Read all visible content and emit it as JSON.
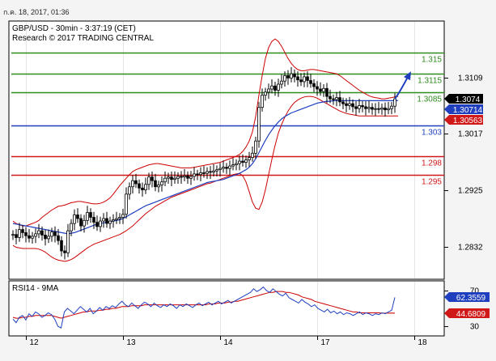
{
  "header": {
    "datetime": "ก.ค. 18, 2017, 01:36",
    "title": "GBP/USD - 30min - 3:37:19 (CET)",
    "source": "Research © 2017 TRADING CENTRAL"
  },
  "colors": {
    "bg": "#ffffff",
    "frame": "#000000",
    "resistance": "#2e8b1e",
    "pivot": "#1f3fbf",
    "support": "#d01818",
    "candles": "#000000",
    "bollinger": "#cc0000",
    "ma": "#1f3fbf",
    "rsi": "#1f3fbf",
    "rsi_ma": "#cc0000",
    "arrow": "#1f3fbf",
    "price_tag_bg": "#000000",
    "ma_tag_bg": "#1f3fbf",
    "bb_tag_bg": "#d01818"
  },
  "chart_data": [
    {
      "type": "line",
      "panel": "price",
      "ylim": [
        1.278,
        1.32
      ],
      "y_ticks": [
        {
          "label": "1.3109",
          "value": 1.3109
        },
        {
          "label": "1.3017",
          "value": 1.3017
        },
        {
          "label": "1.2925",
          "value": 1.2925
        },
        {
          "label": "1.2832",
          "value": 1.2832
        }
      ],
      "x_ticks": [
        {
          "label": "12",
          "index": 4
        },
        {
          "label": "13",
          "index": 34
        },
        {
          "label": "14",
          "index": 64
        },
        {
          "label": "17",
          "index": 94
        },
        {
          "label": "18",
          "index": 124
        }
      ],
      "levels": [
        {
          "label": "1.315",
          "value": 1.315,
          "role": "resistance"
        },
        {
          "label": "1.3115",
          "value": 1.3115,
          "role": "resistance"
        },
        {
          "label": "1.3085",
          "value": 1.3085,
          "role": "resistance"
        },
        {
          "label": "1.303",
          "value": 1.303,
          "role": "pivot"
        },
        {
          "label": "1.298",
          "value": 1.298,
          "role": "support"
        },
        {
          "label": "1.295",
          "value": 1.295,
          "role": "support"
        }
      ],
      "tags": [
        {
          "label": "1.3074",
          "value": 1.3074,
          "role": "price"
        },
        {
          "label": "1.30714",
          "value": 1.30714,
          "role": "ma"
        },
        {
          "label": "1.30563",
          "value": 1.30563,
          "role": "bb"
        }
      ],
      "close": [
        1.2852,
        1.2847,
        1.286,
        1.2855,
        1.285,
        1.2846,
        1.2849,
        1.2853,
        1.2858,
        1.2851,
        1.2845,
        1.2849,
        1.2856,
        1.285,
        1.2842,
        1.2825,
        1.2822,
        1.2858,
        1.287,
        1.2884,
        1.2878,
        1.2866,
        1.2875,
        1.2888,
        1.288,
        1.2872,
        1.2865,
        1.2874,
        1.2878,
        1.287,
        1.2874,
        1.2876,
        1.2878,
        1.288,
        1.2885,
        1.2918,
        1.293,
        1.294,
        1.2935,
        1.2928,
        1.2925,
        1.2934,
        1.2946,
        1.294,
        1.293,
        1.2933,
        1.2938,
        1.2944,
        1.2946,
        1.2942,
        1.2944,
        1.2947,
        1.2946,
        1.2948,
        1.2944,
        1.2947,
        1.2951,
        1.295,
        1.2953,
        1.2952,
        1.2955,
        1.2954,
        1.2956,
        1.2958,
        1.296,
        1.2962,
        1.296,
        1.2964,
        1.2966,
        1.2968,
        1.2972,
        1.297,
        1.2974,
        1.2978,
        1.2985,
        1.3005,
        1.306,
        1.308,
        1.3085,
        1.309,
        1.3095,
        1.3088,
        1.3098,
        1.3103,
        1.3112,
        1.3108,
        1.3115,
        1.311,
        1.3105,
        1.3102,
        1.311,
        1.3104,
        1.3099,
        1.3094,
        1.309,
        1.3086,
        1.3091,
        1.3078,
        1.3074,
        1.3073,
        1.3076,
        1.3069,
        1.3066,
        1.3063,
        1.3066,
        1.3061,
        1.3058,
        1.3063,
        1.3061,
        1.3058,
        1.306,
        1.3057,
        1.3058,
        1.3057,
        1.3059,
        1.3056,
        1.3058,
        1.3062,
        1.3074
      ],
      "bollinger_upper": [
        1.2874,
        1.287,
        1.2868,
        1.2866,
        1.2866,
        1.2868,
        1.287,
        1.2872,
        1.2875,
        1.288,
        1.2884,
        1.2888,
        1.2892,
        1.2895,
        1.2898,
        1.2899,
        1.29,
        1.2902,
        1.2904,
        1.2905,
        1.2906,
        1.2906,
        1.2905,
        1.2904,
        1.2903,
        1.2902,
        1.2902,
        1.2903,
        1.2905,
        1.2908,
        1.2912,
        1.2918,
        1.2925,
        1.2932,
        1.2938,
        1.2944,
        1.295,
        1.2955,
        1.2958,
        1.296,
        1.2962,
        1.2964,
        1.2966,
        1.2967,
        1.2968,
        1.2968,
        1.2967,
        1.2966,
        1.2965,
        1.2964,
        1.2963,
        1.2962,
        1.2961,
        1.2961,
        1.2961,
        1.2961,
        1.2962,
        1.2963,
        1.2964,
        1.2965,
        1.2966,
        1.2967,
        1.2968,
        1.2969,
        1.297,
        1.2972,
        1.2974,
        1.2976,
        1.2978,
        1.298,
        1.2983,
        1.2988,
        1.2995,
        1.3005,
        1.302,
        1.3045,
        1.308,
        1.3112,
        1.314,
        1.3158,
        1.3168,
        1.3172,
        1.3168,
        1.316,
        1.315,
        1.314,
        1.3132,
        1.3126,
        1.3122,
        1.312,
        1.312,
        1.3121,
        1.3122,
        1.3122,
        1.3121,
        1.312,
        1.3119,
        1.3118,
        1.3117,
        1.3116,
        1.3115,
        1.3112,
        1.3108,
        1.3104,
        1.31,
        1.3096,
        1.3092,
        1.3088,
        1.3085,
        1.3082,
        1.3079,
        1.3077,
        1.3076,
        1.3075,
        1.3074,
        1.3074,
        1.3075,
        1.3076,
        1.3077,
        1.3078
      ],
      "bollinger_lower": [
        1.2834,
        1.2831,
        1.283,
        1.2829,
        1.2829,
        1.2829,
        1.2829,
        1.2829,
        1.2828,
        1.2826,
        1.2823,
        1.2819,
        1.2815,
        1.2812,
        1.281,
        1.2809,
        1.2808,
        1.2809,
        1.2811,
        1.2814,
        1.2818,
        1.2822,
        1.2826,
        1.283,
        1.2833,
        1.2836,
        1.2838,
        1.284,
        1.2842,
        1.2844,
        1.2846,
        1.2848,
        1.285,
        1.2852,
        1.2855,
        1.2858,
        1.2862,
        1.2866,
        1.2871,
        1.2876,
        1.2881,
        1.2886,
        1.289,
        1.2894,
        1.2898,
        1.2901,
        1.2904,
        1.2907,
        1.291,
        1.2913,
        1.2915,
        1.2917,
        1.2919,
        1.2921,
        1.2923,
        1.2925,
        1.2927,
        1.2929,
        1.2931,
        1.2933,
        1.2935,
        1.2936,
        1.2938,
        1.294,
        1.2942,
        1.2944,
        1.2946,
        1.2948,
        1.295,
        1.2951,
        1.2952,
        1.2948,
        1.2938,
        1.2922,
        1.2905,
        1.2895,
        1.2893,
        1.2905,
        1.2925,
        1.295,
        1.2975,
        1.2998,
        1.3018,
        1.3032,
        1.3044,
        1.3054,
        1.3062,
        1.3068,
        1.3072,
        1.3075,
        1.3077,
        1.3078,
        1.3078,
        1.3077,
        1.3075,
        1.3072,
        1.3069,
        1.3066,
        1.3063,
        1.306,
        1.3057,
        1.3054,
        1.3052,
        1.305,
        1.3049,
        1.3048,
        1.3047,
        1.3046,
        1.3046,
        1.3046,
        1.3046,
        1.3046,
        1.3046,
        1.3046,
        1.3046,
        1.3046,
        1.3046,
        1.3046,
        1.3046,
        1.3046
      ],
      "moving_average": [
        1.287,
        1.2869,
        1.2868,
        1.2867,
        1.2866,
        1.2865,
        1.2864,
        1.2863,
        1.2862,
        1.2861,
        1.286,
        1.2859,
        1.2858,
        1.2857,
        1.2856,
        1.2855,
        1.2854,
        1.2853,
        1.2854,
        1.2855,
        1.2857,
        1.2859,
        1.2861,
        1.2863,
        1.2865,
        1.2867,
        1.2869,
        1.287,
        1.2871,
        1.2872,
        1.2873,
        1.2874,
        1.2875,
        1.2876,
        1.2878,
        1.2881,
        1.2884,
        1.2887,
        1.289,
        1.2893,
        1.2896,
        1.2899,
        1.2901,
        1.2903,
        1.2905,
        1.2907,
        1.2909,
        1.2911,
        1.2913,
        1.2915,
        1.2917,
        1.2919,
        1.2921,
        1.2923,
        1.2925,
        1.2927,
        1.2929,
        1.2931,
        1.2933,
        1.2935,
        1.2937,
        1.2938,
        1.2939,
        1.294,
        1.2941,
        1.2942,
        1.2944,
        1.2946,
        1.2948,
        1.295,
        1.2952,
        1.2955,
        1.2958,
        1.2962,
        1.2968,
        1.2976,
        1.2986,
        1.2996,
        1.3006,
        1.3015,
        1.3023,
        1.303,
        1.3036,
        1.3041,
        1.3045,
        1.3048,
        1.3051,
        1.3053,
        1.3055,
        1.3057,
        1.3059,
        1.3061,
        1.3063,
        1.3065,
        1.3067,
        1.3068,
        1.3069,
        1.307,
        1.307,
        1.3071,
        1.3071,
        1.3071,
        1.3071,
        1.3071,
        1.3071,
        1.3071,
        1.3071,
        1.3071,
        1.3071,
        1.3071,
        1.3071,
        1.3071,
        1.3071,
        1.3071,
        1.3071,
        1.3071,
        1.3071,
        1.3071,
        1.3071,
        1.30714
      ]
    },
    {
      "type": "line",
      "panel": "rsi",
      "title": "RSI14 - 9MA",
      "ylim": [
        20,
        80
      ],
      "y_ticks": [
        {
          "label": "70",
          "value": 70
        },
        {
          "label": "30",
          "value": 30
        }
      ],
      "tags": [
        {
          "label": "62.3559",
          "value": 62.3559,
          "role": "rsi"
        },
        {
          "label": "44.6809",
          "value": 44.6809,
          "role": "rsi_ma"
        }
      ],
      "rsi": [
        38,
        34,
        40,
        42,
        37,
        44,
        41,
        46,
        44,
        40,
        42,
        45,
        43,
        38,
        30,
        28,
        46,
        50,
        47,
        44,
        48,
        52,
        49,
        46,
        50,
        44,
        47,
        51,
        48,
        52,
        50,
        53,
        51,
        55,
        58,
        54,
        52,
        56,
        53,
        50,
        54,
        57,
        55,
        52,
        56,
        53,
        51,
        54,
        52,
        55,
        53,
        50,
        54,
        52,
        55,
        53,
        51,
        54,
        56,
        53,
        55,
        57,
        54,
        56,
        58,
        55,
        57,
        59,
        56,
        58,
        60,
        62,
        64,
        66,
        68,
        72,
        69,
        71,
        74,
        70,
        68,
        72,
        69,
        66,
        64,
        67,
        62,
        60,
        58,
        56,
        60,
        57,
        55,
        52,
        54,
        50,
        48,
        46,
        49,
        45,
        47,
        44,
        46,
        43,
        45,
        44,
        42,
        44,
        46,
        43,
        45,
        44,
        42,
        44,
        43,
        45,
        44,
        46,
        48,
        62.3559
      ],
      "rsi_ma": [
        40,
        39,
        39,
        40,
        40,
        41,
        41,
        42,
        42,
        42,
        42,
        42,
        42,
        41,
        40,
        39,
        40,
        41,
        42,
        43,
        44,
        45,
        46,
        46,
        47,
        47,
        47,
        48,
        48,
        49,
        49,
        50,
        50,
        51,
        52,
        52,
        52,
        53,
        53,
        53,
        53,
        54,
        54,
        54,
        54,
        54,
        54,
        54,
        54,
        54,
        54,
        54,
        54,
        54,
        54,
        54,
        54,
        54,
        54,
        54,
        54,
        55,
        55,
        55,
        56,
        56,
        56,
        57,
        57,
        58,
        58,
        59,
        60,
        61,
        62,
        63,
        64,
        65,
        66,
        67,
        68,
        68,
        69,
        69,
        69,
        68,
        68,
        67,
        66,
        65,
        63,
        62,
        61,
        60,
        58,
        57,
        56,
        55,
        54,
        53,
        52,
        51,
        50,
        49,
        48,
        47,
        46,
        46,
        45,
        45,
        45,
        45,
        45,
        45,
        45,
        44.6,
        44.6,
        44.6,
        44.7,
        44.6809
      ]
    }
  ]
}
